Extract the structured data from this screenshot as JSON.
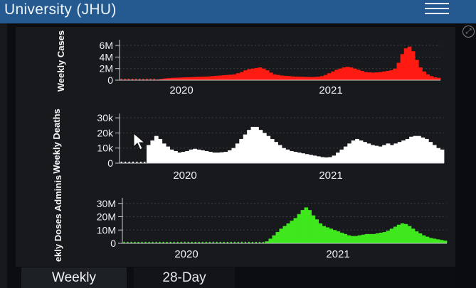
{
  "header": {
    "title": "University (JHU)"
  },
  "tabs": [
    {
      "label": "Weekly",
      "active": true
    },
    {
      "label": "28-Day",
      "active": false
    }
  ],
  "colors": {
    "header_bg": "#245a8f",
    "cases": "#ff1a12",
    "deaths": "#ffffff",
    "doses": "#3fe81c"
  },
  "chart_data": [
    {
      "type": "area",
      "ylabel": "Weekly Cases",
      "color": "#ff1a12",
      "ylim": [
        0,
        6500000
      ],
      "yticks": [
        0,
        2000000,
        4000000,
        6000000
      ],
      "ytick_labels": [
        "0",
        "2M",
        "4M",
        "6M"
      ],
      "xticks": [
        "2020",
        "2021"
      ],
      "values": [
        0,
        0,
        0,
        0,
        0,
        0,
        0,
        0,
        0,
        0,
        100000,
        200000,
        300000,
        350000,
        400000,
        420000,
        450000,
        480000,
        500000,
        520000,
        550000,
        580000,
        600000,
        620000,
        650000,
        700000,
        750000,
        800000,
        850000,
        900000,
        950000,
        1000000,
        1200000,
        1400000,
        1700000,
        1900000,
        2000000,
        2100000,
        2200000,
        2000000,
        1700000,
        1300000,
        1000000,
        900000,
        800000,
        750000,
        700000,
        650000,
        620000,
        600000,
        580000,
        560000,
        540000,
        560000,
        600000,
        700000,
        900000,
        1200000,
        1500000,
        1800000,
        2000000,
        2200000,
        2300000,
        2200000,
        2000000,
        1800000,
        1600000,
        1400000,
        1350000,
        1300000,
        1350000,
        1400000,
        1500000,
        1600000,
        1700000,
        2000000,
        3000000,
        4500000,
        5500000,
        5800000,
        5000000,
        3500000,
        2200000,
        1500000,
        1000000,
        700000,
        500000,
        400000
      ],
      "hatched_start": 0,
      "hatched_end": 10
    },
    {
      "type": "area",
      "ylabel": "Weekly Deaths",
      "color": "#ffffff",
      "ylim": [
        0,
        31000
      ],
      "yticks": [
        0,
        10000,
        20000,
        30000
      ],
      "ytick_labels": [
        "0",
        "10k",
        "20k",
        "30k"
      ],
      "xticks": [
        "2020",
        "2021"
      ],
      "values": [
        0,
        0,
        0,
        0,
        0,
        0,
        0,
        12000,
        15000,
        18000,
        16000,
        13000,
        11000,
        9000,
        8000,
        7000,
        7500,
        8000,
        9000,
        9500,
        9000,
        8500,
        8000,
        7500,
        7000,
        7000,
        7200,
        7500,
        8500,
        10000,
        13000,
        16000,
        19000,
        22000,
        24000,
        24000,
        22000,
        20000,
        18000,
        16000,
        14000,
        12000,
        10000,
        9000,
        8000,
        7500,
        7000,
        6500,
        6000,
        5500,
        5000,
        4500,
        4000,
        3800,
        4000,
        5000,
        7000,
        9000,
        11000,
        13000,
        15000,
        16000,
        15000,
        14000,
        13000,
        12000,
        11500,
        11000,
        12000,
        13000,
        12000,
        13000,
        14000,
        15000,
        16000,
        17500,
        18000,
        18000,
        17000,
        16000,
        14000,
        12000,
        10000,
        9000
      ],
      "hatched_start": 0,
      "hatched_end": 7
    },
    {
      "type": "area",
      "ylabel": "ekly Doses Adminis",
      "color": "#3fe81c",
      "ylim": [
        0,
        32000000
      ],
      "yticks": [
        0,
        10000000,
        20000000,
        30000000
      ],
      "ytick_labels": [
        "0",
        "10M",
        "20M",
        "30M"
      ],
      "xticks": [
        "2020",
        "2021"
      ],
      "values": [
        0,
        0,
        0,
        0,
        0,
        0,
        0,
        0,
        0,
        0,
        0,
        0,
        0,
        0,
        0,
        0,
        0,
        0,
        0,
        0,
        0,
        0,
        0,
        0,
        0,
        0,
        0,
        0,
        0,
        0,
        0,
        0,
        0,
        0,
        0,
        0,
        0,
        0,
        0,
        0,
        1500000,
        3500000,
        6000000,
        8500000,
        11000000,
        13000000,
        15000000,
        17000000,
        19000000,
        22000000,
        25000000,
        27000000,
        25000000,
        21000000,
        18000000,
        15000000,
        13000000,
        12000000,
        11000000,
        10000000,
        9000000,
        8000000,
        7000000,
        6000000,
        5500000,
        5500000,
        6000000,
        6500000,
        7000000,
        7000000,
        7000000,
        7500000,
        8000000,
        8500000,
        9500000,
        11000000,
        12500000,
        14000000,
        15000000,
        14500000,
        13000000,
        11000000,
        9000000,
        7500000,
        6000000,
        5000000,
        4000000,
        3500000,
        3000000,
        2500000,
        2000000
      ],
      "hatched_start": 0,
      "hatched_end": 40
    }
  ]
}
